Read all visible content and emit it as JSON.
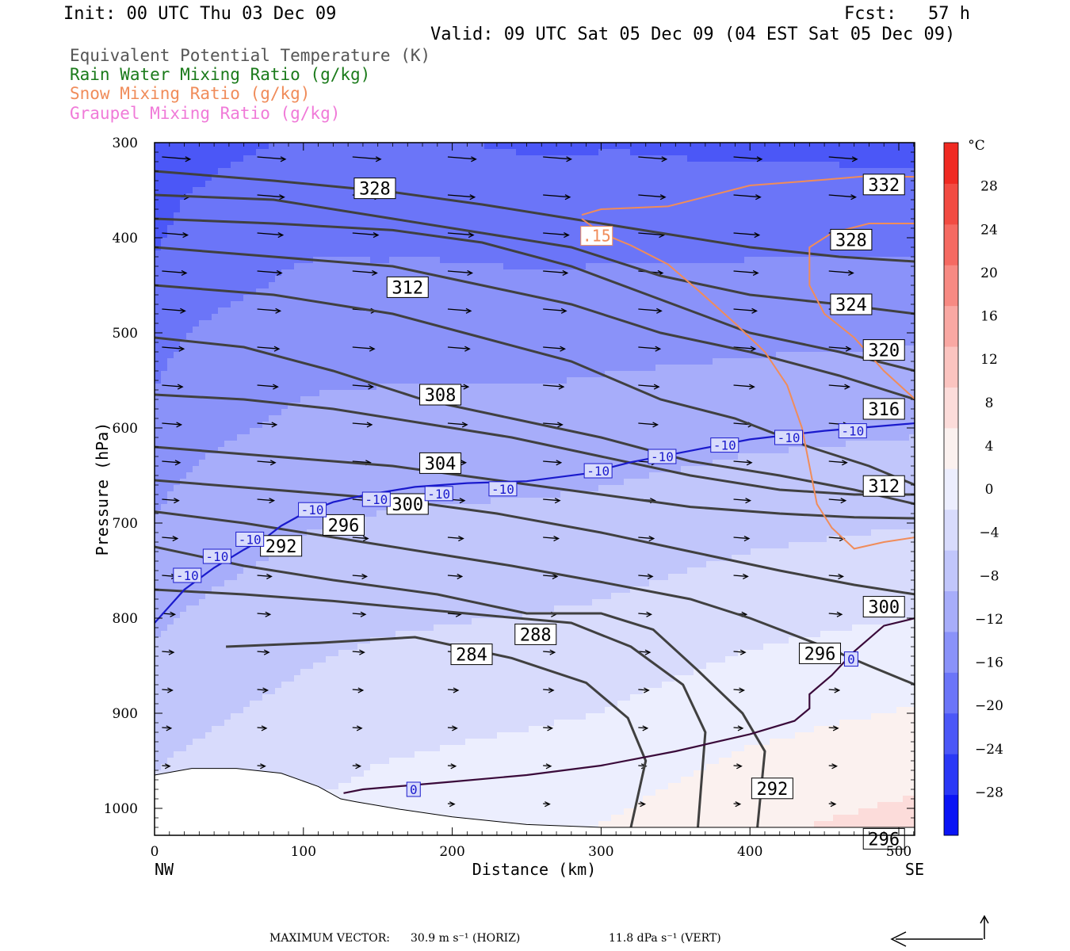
{
  "header": {
    "init": "Init: 00 UTC Thu 03 Dec 09",
    "fcst": "Fcst:   57 h",
    "valid": "Valid: 09 UTC Sat 05 Dec 09 (04 EST Sat 05 Dec 09)"
  },
  "legend": [
    {
      "text": "Equivalent Potential Temperature (K)",
      "color": "#555555"
    },
    {
      "text": "Rain Water Mixing Ratio (g/kg)",
      "color": "#1a7a1a"
    },
    {
      "text": "Snow Mixing Ratio (g/kg)",
      "color": "#f08c5a"
    },
    {
      "text": "Graupel Mixing Ratio (g/kg)",
      "color": "#f07ad8"
    }
  ],
  "footer": {
    "label": "MAXIMUM VECTOR:",
    "horiz": "30.9 m s⁻¹ (HORIZ)",
    "vert": "11.8 dPa s⁻¹ (VERT)"
  },
  "chart_data": {
    "type": "heatmap",
    "xlabel": "Distance (km)",
    "ylabel": "Pressure (hPa)",
    "x_ticks": [
      0,
      100,
      200,
      300,
      400,
      500
    ],
    "y_ticks": [
      300,
      400,
      500,
      600,
      700,
      800,
      900,
      1000
    ],
    "x_end_labels": {
      "left": "NW",
      "right": "SE"
    },
    "xlim": [
      0,
      511
    ],
    "ylim": [
      300,
      1023
    ],
    "y_axis_inverted": true,
    "colorbar": {
      "unit": "°C",
      "ticks": [
        28,
        24,
        20,
        16,
        12,
        8,
        4,
        0,
        -4,
        -8,
        -12,
        -16,
        -20,
        -24,
        -28
      ],
      "range": [
        -32,
        32
      ],
      "colors_cold_to_warm": [
        "#0a14f5",
        "#2a38f6",
        "#4b57f7",
        "#6b75f8",
        "#8a92f9",
        "#a7adfa",
        "#c1c6fb",
        "#d8dbfc",
        "#eceefe",
        "#fbf1ef",
        "#fcdcda",
        "#fbc4c0",
        "#f9a8a3",
        "#f78a83",
        "#f56a62",
        "#f24b42",
        "#f02a22"
      ]
    },
    "temperature_field_at_surface_c": {
      "x": [
        0,
        150,
        300,
        400,
        511
      ],
      "t": [
        -4,
        0,
        2,
        5,
        7
      ]
    },
    "theta_e_contours_k": [
      {
        "value": 284,
        "points": [
          [
            48,
            830
          ],
          [
            110,
            826
          ],
          [
            175,
            820
          ],
          [
            240,
            842
          ],
          [
            290,
            868
          ],
          [
            318,
            905
          ],
          [
            330,
            950
          ],
          [
            320,
            1020
          ]
        ]
      },
      {
        "value": 288,
        "points": [
          [
            0,
            770
          ],
          [
            60,
            775
          ],
          [
            120,
            782
          ],
          [
            175,
            790
          ],
          [
            230,
            798
          ],
          [
            280,
            805
          ],
          [
            320,
            830
          ],
          [
            355,
            870
          ],
          [
            370,
            920
          ],
          [
            365,
            1020
          ]
        ]
      },
      {
        "value": 292,
        "points": [
          [
            0,
            725
          ],
          [
            60,
            745
          ],
          [
            120,
            760
          ],
          [
            190,
            775
          ],
          [
            250,
            795
          ],
          [
            300,
            795
          ],
          [
            335,
            812
          ],
          [
            365,
            855
          ],
          [
            395,
            900
          ],
          [
            410,
            940
          ],
          [
            405,
            1020
          ]
        ]
      },
      {
        "value": 296,
        "points": [
          [
            0,
            688
          ],
          [
            60,
            700
          ],
          [
            120,
            715
          ],
          [
            180,
            730
          ],
          [
            240,
            745
          ],
          [
            300,
            762
          ],
          [
            360,
            780
          ],
          [
            400,
            800
          ],
          [
            450,
            830
          ],
          [
            480,
            850
          ],
          [
            511,
            870
          ]
        ]
      },
      {
        "value": 300,
        "points": [
          [
            0,
            655
          ],
          [
            80,
            665
          ],
          [
            160,
            675
          ],
          [
            230,
            690
          ],
          [
            300,
            710
          ],
          [
            360,
            730
          ],
          [
            420,
            750
          ],
          [
            470,
            765
          ],
          [
            511,
            775
          ]
        ]
      },
      {
        "value": 304,
        "points": [
          [
            0,
            620
          ],
          [
            80,
            630
          ],
          [
            160,
            640
          ],
          [
            230,
            655
          ],
          [
            300,
            670
          ],
          [
            360,
            683
          ],
          [
            420,
            690
          ],
          [
            470,
            694
          ],
          [
            511,
            695
          ]
        ]
      },
      {
        "value": 308,
        "points": [
          [
            0,
            565
          ],
          [
            60,
            570
          ],
          [
            120,
            580
          ],
          [
            180,
            595
          ],
          [
            240,
            610
          ],
          [
            300,
            630
          ],
          [
            360,
            650
          ],
          [
            420,
            665
          ],
          [
            470,
            670
          ],
          [
            511,
            670
          ]
        ]
      },
      {
        "value": 312,
        "points": [
          [
            0,
            505
          ],
          [
            60,
            515
          ],
          [
            120,
            540
          ],
          [
            180,
            570
          ],
          [
            240,
            590
          ],
          [
            300,
            610
          ],
          [
            360,
            635
          ],
          [
            420,
            650
          ],
          [
            470,
            665
          ],
          [
            511,
            680
          ]
        ]
      },
      {
        "value": 316,
        "points": [
          [
            0,
            450
          ],
          [
            80,
            460
          ],
          [
            160,
            480
          ],
          [
            220,
            505
          ],
          [
            280,
            530
          ],
          [
            340,
            570
          ],
          [
            390,
            590
          ],
          [
            440,
            620
          ],
          [
            480,
            640
          ],
          [
            511,
            660
          ]
        ]
      },
      {
        "value": 320,
        "points": [
          [
            0,
            410
          ],
          [
            80,
            420
          ],
          [
            160,
            430
          ],
          [
            220,
            450
          ],
          [
            280,
            470
          ],
          [
            340,
            500
          ],
          [
            400,
            520
          ],
          [
            460,
            545
          ],
          [
            511,
            570
          ]
        ]
      },
      {
        "value": 324,
        "points": [
          [
            0,
            380
          ],
          [
            80,
            385
          ],
          [
            160,
            392
          ],
          [
            220,
            405
          ],
          [
            280,
            430
          ],
          [
            340,
            465
          ],
          [
            400,
            500
          ],
          [
            460,
            520
          ],
          [
            511,
            540
          ]
        ]
      },
      {
        "value": 328,
        "points": [
          [
            0,
            355
          ],
          [
            80,
            360
          ],
          [
            160,
            380
          ],
          [
            220,
            395
          ],
          [
            280,
            410
          ],
          [
            340,
            440
          ],
          [
            400,
            460
          ],
          [
            460,
            470
          ],
          [
            511,
            480
          ]
        ]
      },
      {
        "value": 332,
        "points": [
          [
            0,
            330
          ],
          [
            80,
            340
          ],
          [
            160,
            352
          ],
          [
            220,
            365
          ],
          [
            280,
            380
          ],
          [
            340,
            395
          ],
          [
            400,
            410
          ],
          [
            460,
            420
          ],
          [
            511,
            425
          ]
        ]
      }
    ],
    "theta_e_labels": [
      {
        "text": "328",
        "x": 148,
        "p": 348
      },
      {
        "text": "312",
        "x": 170,
        "p": 452
      },
      {
        "text": "308",
        "x": 192,
        "p": 565
      },
      {
        "text": "304",
        "x": 192,
        "p": 637
      },
      {
        "text": "300",
        "x": 170,
        "p": 680
      },
      {
        "text": "296",
        "x": 127,
        "p": 702
      },
      {
        "text": "292",
        "x": 85,
        "p": 724
      },
      {
        "text": "288",
        "x": 256,
        "p": 817
      },
      {
        "text": "284",
        "x": 213,
        "p": 838
      },
      {
        "text": "332",
        "x": 490,
        "p": 344
      },
      {
        "text": "328",
        "x": 468,
        "p": 402
      },
      {
        "text": "324",
        "x": 468,
        "p": 470
      },
      {
        "text": "320",
        "x": 490,
        "p": 518
      },
      {
        "text": "316",
        "x": 490,
        "p": 580
      },
      {
        "text": "312",
        "x": 490,
        "p": 661
      },
      {
        "text": "300",
        "x": 490,
        "p": 788
      },
      {
        "text": "296",
        "x": 447,
        "p": 837
      },
      {
        "text": "292",
        "x": 415,
        "p": 979
      },
      {
        "text": "296",
        "x": 490,
        "p": 1032
      }
    ],
    "isotherms": [
      {
        "value": -10,
        "color": "#1a1acc",
        "points": [
          [
            0,
            805
          ],
          [
            20,
            770
          ],
          [
            40,
            747
          ],
          [
            60,
            728
          ],
          [
            75,
            715
          ],
          [
            85,
            703
          ],
          [
            100,
            690
          ],
          [
            120,
            678
          ],
          [
            140,
            671
          ],
          [
            175,
            662
          ],
          [
            210,
            658
          ],
          [
            250,
            656
          ],
          [
            290,
            648
          ],
          [
            320,
            636
          ],
          [
            360,
            624
          ],
          [
            400,
            612
          ],
          [
            450,
            603
          ],
          [
            511,
            595
          ]
        ]
      },
      {
        "value": 0,
        "color": "#3a0a3a",
        "points": [
          [
            127,
            984
          ],
          [
            140,
            980
          ],
          [
            200,
            972
          ],
          [
            250,
            965
          ],
          [
            300,
            955
          ],
          [
            350,
            940
          ],
          [
            400,
            922
          ],
          [
            430,
            908
          ],
          [
            440,
            895
          ],
          [
            440,
            880
          ],
          [
            455,
            860
          ],
          [
            470,
            835
          ],
          [
            490,
            808
          ],
          [
            511,
            800
          ]
        ]
      }
    ],
    "isotherm_labels": [
      {
        "text": "-10",
        "x": 22,
        "p": 755
      },
      {
        "text": "-10",
        "x": 42,
        "p": 735
      },
      {
        "text": "-10",
        "x": 64,
        "p": 717
      },
      {
        "text": "-10",
        "x": 106,
        "p": 686
      },
      {
        "text": "-10",
        "x": 149,
        "p": 675
      },
      {
        "text": "-10",
        "x": 191,
        "p": 669
      },
      {
        "text": "-10",
        "x": 234,
        "p": 664
      },
      {
        "text": "-10",
        "x": 298,
        "p": 645
      },
      {
        "text": "-10",
        "x": 341,
        "p": 630
      },
      {
        "text": "-10",
        "x": 383,
        "p": 618
      },
      {
        "text": "-10",
        "x": 426,
        "p": 610
      },
      {
        "text": "-10",
        "x": 469,
        "p": 603
      },
      {
        "text": "0",
        "x": 174,
        "p": 980
      },
      {
        "text": "0",
        "x": 468,
        "p": 843
      }
    ],
    "snow_mixing_ratio_contours": [
      {
        "value": 0.15,
        "points": [
          [
            287,
            380
          ],
          [
            300,
            395
          ],
          [
            320,
            408
          ],
          [
            345,
            428
          ],
          [
            365,
            455
          ],
          [
            390,
            490
          ],
          [
            410,
            520
          ],
          [
            425,
            555
          ],
          [
            435,
            600
          ],
          [
            445,
            680
          ],
          [
            455,
            705
          ],
          [
            470,
            727
          ],
          [
            490,
            720
          ],
          [
            511,
            715
          ]
        ]
      },
      {
        "value": 0.15,
        "points": [
          [
            511,
            336
          ],
          [
            480,
            335
          ],
          [
            450,
            339
          ],
          [
            400,
            345
          ],
          [
            345,
            367
          ],
          [
            300,
            370
          ],
          [
            287,
            376
          ]
        ]
      },
      {
        "value": 0.15,
        "points": [
          [
            511,
            385
          ],
          [
            480,
            385
          ],
          [
            455,
            395
          ],
          [
            440,
            410
          ],
          [
            440,
            450
          ],
          [
            450,
            480
          ],
          [
            470,
            505
          ],
          [
            490,
            540
          ],
          [
            511,
            570
          ]
        ]
      }
    ],
    "snow_labels": [
      {
        "text": ".15",
        "x": 297,
        "p": 398
      }
    ],
    "terrain_hpa": [
      [
        0,
        965
      ],
      [
        25,
        958
      ],
      [
        55,
        958
      ],
      [
        85,
        963
      ],
      [
        110,
        977
      ],
      [
        125,
        990
      ],
      [
        135,
        993
      ],
      [
        165,
        1001
      ],
      [
        200,
        1009
      ],
      [
        250,
        1017
      ],
      [
        300,
        1020
      ],
      [
        511,
        1020
      ]
    ]
  }
}
